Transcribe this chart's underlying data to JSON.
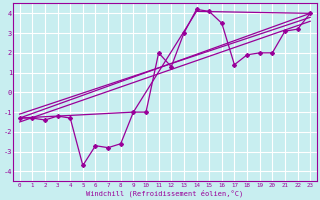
{
  "xlabel": "Windchill (Refroidissement éolien,°C)",
  "bg_color": "#c8eef0",
  "grid_color": "#ffffff",
  "line_color": "#990099",
  "xlim": [
    -0.5,
    23.5
  ],
  "ylim": [
    -4.5,
    4.5
  ],
  "xticks": [
    0,
    1,
    2,
    3,
    4,
    5,
    6,
    7,
    8,
    9,
    10,
    11,
    12,
    13,
    14,
    15,
    16,
    17,
    18,
    19,
    20,
    21,
    22,
    23
  ],
  "yticks": [
    -4,
    -3,
    -2,
    -1,
    0,
    1,
    2,
    3,
    4
  ],
  "series1_x": [
    0,
    1,
    2,
    3,
    4,
    5,
    6,
    7,
    8,
    9,
    10,
    11,
    12,
    13,
    14,
    15,
    16,
    17,
    18,
    19,
    20,
    21,
    22,
    23
  ],
  "series1_y": [
    -1.3,
    -1.3,
    -1.4,
    -1.2,
    -1.3,
    -3.7,
    -2.7,
    -2.8,
    -2.6,
    -1.0,
    -1.0,
    2.0,
    1.3,
    3.0,
    4.2,
    4.1,
    3.5,
    1.4,
    1.9,
    2.0,
    2.0,
    3.1,
    3.2,
    4.0
  ],
  "line2_x": [
    0,
    23
  ],
  "line2_y": [
    -1.3,
    4.0
  ],
  "line3_x": [
    0,
    23
  ],
  "line3_y": [
    -1.1,
    3.8
  ],
  "line4_x": [
    0,
    23
  ],
  "line4_y": [
    -1.5,
    3.6
  ],
  "line5_x": [
    0,
    9,
    14,
    23
  ],
  "line5_y": [
    -1.3,
    -1.0,
    4.1,
    4.0
  ]
}
